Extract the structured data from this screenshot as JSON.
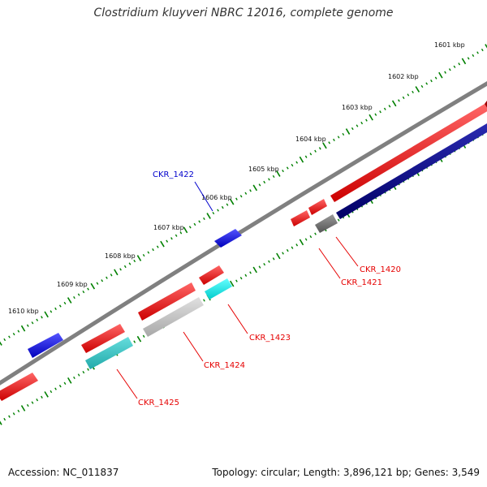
{
  "title": "Clostridium kluyveri NBRC 12016, complete genome",
  "footer": {
    "accession": "Accession: NC_011837",
    "summary": "Topology: circular; Length: 3,896,121 bp; Genes: 3,549"
  },
  "ruler_labels": [
    "1601 kbp",
    "1602 kbp",
    "1603 kbp",
    "1604 kbp",
    "1605 kbp",
    "1606 kbp",
    "1607 kbp",
    "1608 kbp",
    "1609 kbp",
    "1610 kbp"
  ],
  "gene_labels": [
    {
      "name": "CKR_1420",
      "color": "#e60000"
    },
    {
      "name": "CKR_1421",
      "color": "#e60000"
    },
    {
      "name": "CKR_1422",
      "color": "#0000cc"
    },
    {
      "name": "CKR_1423",
      "color": "#e60000"
    },
    {
      "name": "CKR_1424",
      "color": "#e60000"
    },
    {
      "name": "CKR_1425",
      "color": "#e60000"
    }
  ],
  "colors": {
    "forward_gene": "#ff0000",
    "reverse_gene": "#0000ff",
    "dark_gene": "#000080",
    "grey_gene": "#777777",
    "light_grey_gene": "#cccccc",
    "cyan_gene": "#00e5e5",
    "teal_gene": "#33cccc",
    "backbone": "#808080",
    "ticks": "#008000"
  }
}
